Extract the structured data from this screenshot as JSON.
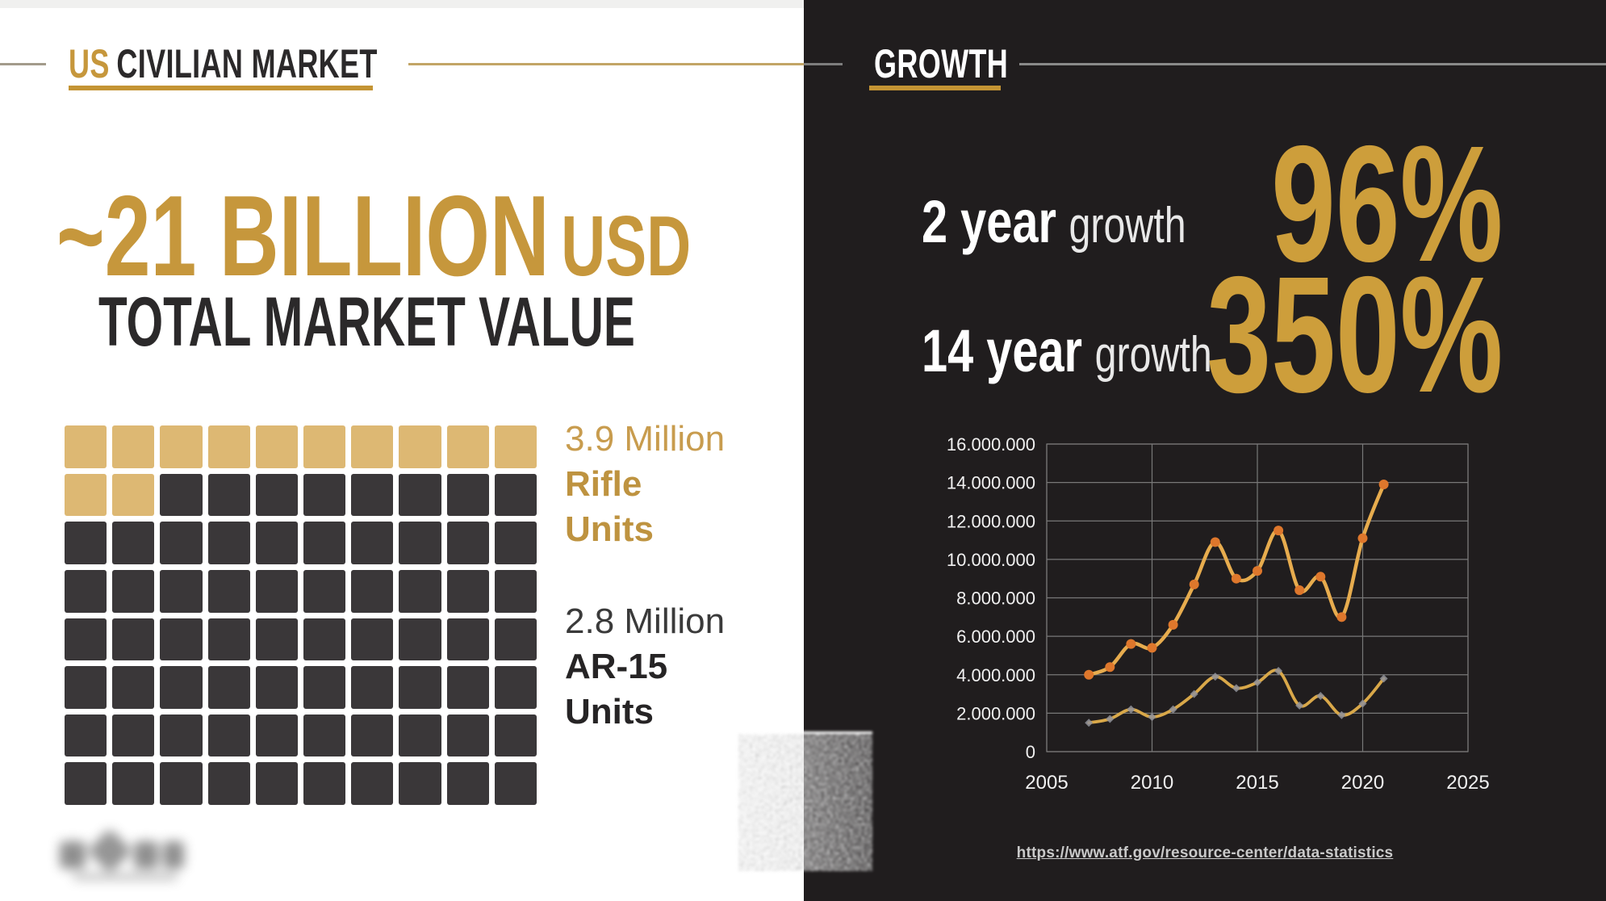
{
  "left_panel": {
    "section_title": {
      "accent": "US",
      "rest": "CIVILIAN MARKET"
    },
    "headline": {
      "value": "~21 BILLION",
      "currency": "USD",
      "caption": "TOTAL MARKET VALUE"
    },
    "waffle": {
      "columns": 10,
      "rows": 8,
      "highlighted_cells": 12,
      "highlight_color": "#DDB873",
      "base_color": "#3A3739",
      "highlight_label": {
        "amount": "3.9 Million",
        "line2": "Rifle",
        "line3": "Units"
      },
      "base_label": {
        "amount": "2.8 Million",
        "line2": "AR-15",
        "line3": "Units"
      }
    }
  },
  "right_panel": {
    "section_title": "GROWTH",
    "stats": [
      {
        "term": "2 year",
        "qualifier": "growth",
        "value": "96%"
      },
      {
        "term": "14 year",
        "qualifier": "growth",
        "value": "350%"
      }
    ],
    "source_url": "https://www.atf.gov/resource-center/data-statistics"
  },
  "chart_data": {
    "type": "line",
    "title": "",
    "xlabel": "",
    "ylabel": "",
    "x": [
      2007,
      2008,
      2009,
      2010,
      2011,
      2012,
      2013,
      2014,
      2015,
      2016,
      2017,
      2018,
      2019,
      2020,
      2021
    ],
    "series": [
      {
        "name": "series-1-rifles-total",
        "color": "#E7AC4E",
        "marker": "circle",
        "marker_color": "#DE772C",
        "values": [
          4000000,
          4400000,
          5600000,
          5400000,
          6600000,
          8700000,
          10900000,
          9000000,
          9400000,
          11500000,
          8400000,
          9100000,
          7000000,
          11100000,
          13900000
        ]
      },
      {
        "name": "series-2-ar15",
        "color": "#D9A849",
        "marker": "diamond",
        "marker_color": "#90929A",
        "values": [
          1500000,
          1700000,
          2200000,
          1800000,
          2200000,
          3000000,
          3900000,
          3300000,
          3600000,
          4200000,
          2400000,
          2900000,
          1900000,
          2500000,
          3800000
        ]
      }
    ],
    "xlim": [
      2005,
      2025
    ],
    "ylim": [
      0,
      16000000
    ],
    "x_ticks": [
      "2005",
      "2010",
      "2015",
      "2020",
      "2025"
    ],
    "y_ticks": [
      "0",
      "2.000.000",
      "4.000.000",
      "6.000.000",
      "8.000.000",
      "10.000.000",
      "12.000.000",
      "14.000.000",
      "16.000.000"
    ],
    "grid": true,
    "legend": "none"
  },
  "colors": {
    "gold": "#C6973C",
    "gold_underline": "#C49434",
    "waffle_gold": "#DDB873",
    "waffle_dark": "#3A3739",
    "dark_panel": "#201D1E",
    "grid_line": "#787878",
    "tick_text": "#F0F0F0",
    "stat_value_gold": "#CD9E3B",
    "source_link": "#C9C9C9"
  }
}
